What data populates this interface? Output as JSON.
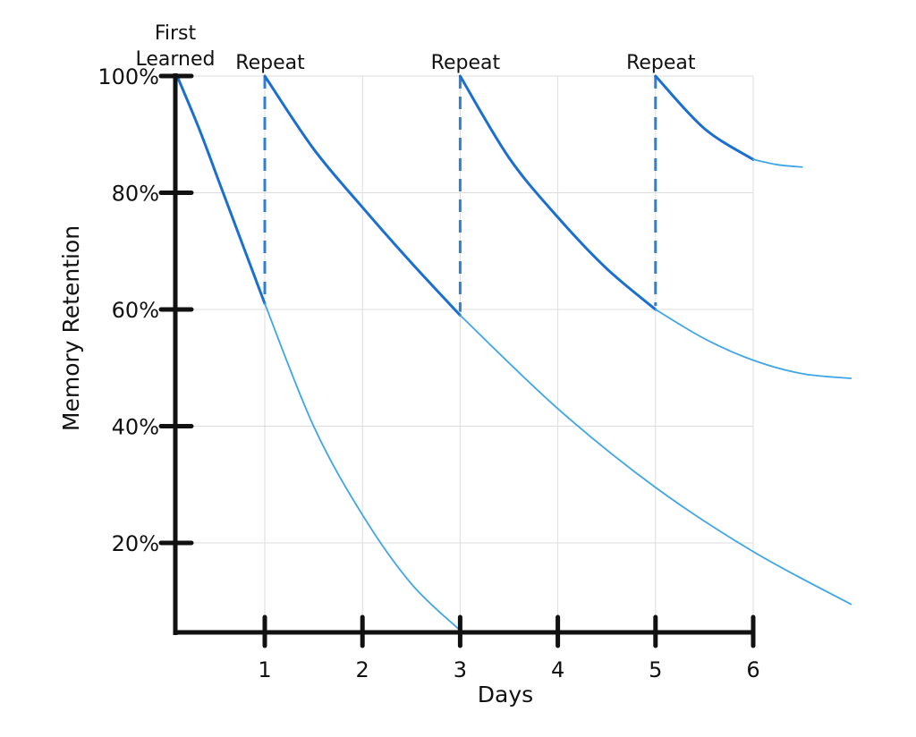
{
  "chart_data": {
    "type": "line",
    "title": "",
    "xlabel": "Days",
    "ylabel": "Memory Retention",
    "x_ticks": [
      "1",
      "2",
      "3",
      "4",
      "5",
      "6"
    ],
    "x_tick_values": [
      1,
      2,
      3,
      4,
      5,
      6
    ],
    "y_ticks": [
      "100%",
      "80%",
      "60%",
      "40%",
      "20%"
    ],
    "y_tick_values": [
      100,
      80,
      60,
      40,
      20
    ],
    "xlim": [
      0,
      7
    ],
    "ylim": [
      0,
      100
    ],
    "grid": true,
    "colors": {
      "review": "#1a6fd0",
      "decay": "#3ea6e6",
      "axis": "#111111",
      "grid": "#dddddd",
      "dashed": "#2f80d0"
    },
    "annotations": [
      {
        "text_lines": [
          "First",
          "Learned"
        ],
        "x": 0
      },
      {
        "text": "Repeat",
        "x": 1
      },
      {
        "text": "Repeat",
        "x": 3
      },
      {
        "text": "Repeat",
        "x": 5
      }
    ],
    "repeat_markers": [
      {
        "x": 1,
        "from": 100,
        "to": 61
      },
      {
        "x": 3,
        "from": 100,
        "to": 59
      },
      {
        "x": 5,
        "from": 100,
        "to": 60
      }
    ],
    "series": [
      {
        "style": "review",
        "points": [
          [
            0,
            100
          ],
          [
            0.25,
            91
          ],
          [
            0.5,
            81
          ],
          [
            0.75,
            71
          ],
          [
            1,
            61
          ]
        ]
      },
      {
        "style": "decay",
        "points": [
          [
            1,
            61
          ],
          [
            1.5,
            40
          ],
          [
            2,
            24.8
          ],
          [
            2.5,
            13
          ],
          [
            3,
            5
          ]
        ]
      },
      {
        "style": "review",
        "points": [
          [
            1,
            100
          ],
          [
            1.5,
            87.5
          ],
          [
            2,
            77.5
          ],
          [
            2.5,
            68
          ],
          [
            3,
            59
          ]
        ]
      },
      {
        "style": "decay",
        "points": [
          [
            3,
            59
          ],
          [
            4,
            43
          ],
          [
            5,
            29.5
          ],
          [
            6,
            18.5
          ],
          [
            7,
            9.5
          ]
        ]
      },
      {
        "style": "review",
        "points": [
          [
            3,
            100
          ],
          [
            3.5,
            86
          ],
          [
            4,
            75.8
          ],
          [
            4.5,
            67
          ],
          [
            5,
            60
          ]
        ]
      },
      {
        "style": "decay",
        "points": [
          [
            5,
            60
          ],
          [
            5.5,
            55
          ],
          [
            6,
            51.3
          ],
          [
            6.5,
            49
          ],
          [
            7,
            48.2
          ]
        ]
      },
      {
        "style": "review",
        "points": [
          [
            5,
            100
          ],
          [
            5.5,
            91
          ],
          [
            6,
            85.7
          ]
        ]
      },
      {
        "style": "decay",
        "points": [
          [
            6,
            85.7
          ],
          [
            6.25,
            84.8
          ],
          [
            6.5,
            84.4
          ]
        ]
      }
    ]
  }
}
